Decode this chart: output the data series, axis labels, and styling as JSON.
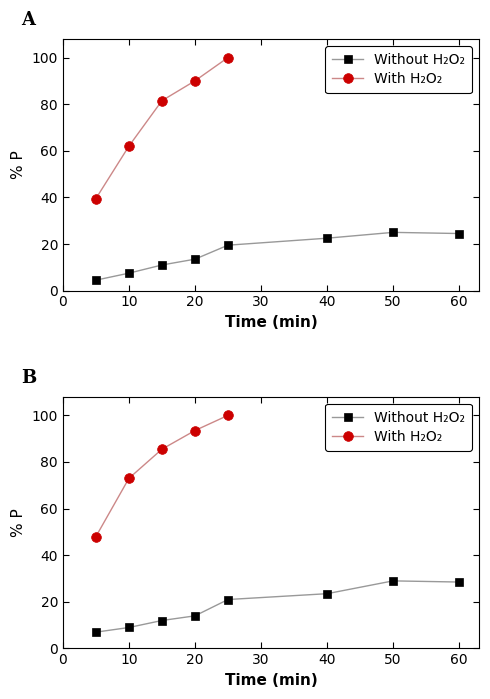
{
  "panel_A": {
    "label": "A",
    "without_h2o2_x": [
      5,
      10,
      15,
      20,
      25,
      40,
      50,
      60
    ],
    "without_h2o2_y": [
      4.5,
      7.5,
      11,
      13.5,
      19.5,
      22.5,
      25,
      24.5
    ],
    "with_h2o2_x": [
      5,
      10,
      15,
      20,
      25
    ],
    "with_h2o2_y": [
      39.5,
      62,
      81.5,
      90,
      100
    ]
  },
  "panel_B": {
    "label": "B",
    "without_h2o2_x": [
      5,
      10,
      15,
      20,
      25,
      40,
      50,
      60
    ],
    "without_h2o2_y": [
      7,
      9,
      12,
      14,
      21,
      23.5,
      29,
      28.5
    ],
    "with_h2o2_x": [
      5,
      10,
      15,
      20,
      25
    ],
    "with_h2o2_y": [
      48,
      73,
      85.5,
      93.5,
      100
    ]
  },
  "line_color_without": "#999999",
  "line_color_with": "#cc8888",
  "marker_color_without": "#000000",
  "marker_color_with": "#cc0000",
  "xlabel": "Time (min)",
  "ylabel": "% P",
  "xlim": [
    0,
    63
  ],
  "ylim": [
    0,
    108
  ],
  "xticks": [
    0,
    10,
    20,
    30,
    40,
    50,
    60
  ],
  "yticks": [
    0,
    20,
    40,
    60,
    80,
    100
  ],
  "legend_label_without": "Without H₂O₂",
  "legend_label_with": "With H₂O₂",
  "background_color": "#ffffff",
  "tick_fontsize": 10,
  "label_fontsize": 11,
  "panel_label_fontsize": 13,
  "legend_fontsize": 10
}
